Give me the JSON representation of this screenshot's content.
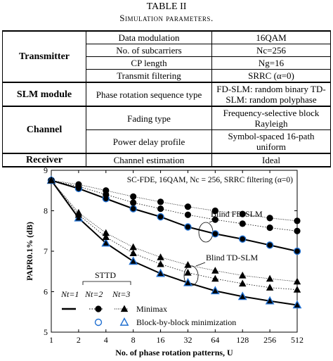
{
  "table": {
    "caption_number": "TABLE II",
    "caption_title": "Simulation parameters.",
    "groups": [
      {
        "name": "Transmitter",
        "rows": [
          {
            "param": "Data modulation",
            "value": "16QAM"
          },
          {
            "param": "No. of subcarriers",
            "value": "Nc=256"
          },
          {
            "param": "CP length",
            "value": "Ng=16"
          },
          {
            "param": "Transmit filtering",
            "value": "SRRC (α=0)"
          }
        ]
      },
      {
        "name": "SLM module",
        "rows": [
          {
            "param": "Phase rotation sequence type",
            "value": "FD-SLM: random binary TD-SLM: random polyphase"
          }
        ]
      },
      {
        "name": "Channel",
        "rows": [
          {
            "param": "Fading type",
            "value": "Frequency-selective block Rayleigh"
          },
          {
            "param": "Power delay profile",
            "value": "Symbol-spaced 16-path uniform"
          }
        ]
      },
      {
        "name": "Receiver",
        "rows": [
          {
            "param": "Channel estimation",
            "value": "Ideal"
          }
        ]
      }
    ]
  },
  "chart_data": {
    "type": "line",
    "title": "SC-FDE, 16QAM, Nc = 256, SRRC filtering (α=0)",
    "xlabel": "No. of phase rotation patterns, U",
    "ylabel": "PAPR0.1% (dB)",
    "x_scale": "log2",
    "x_ticks": [
      "1",
      "2",
      "4",
      "8",
      "16",
      "32",
      "64",
      "128",
      "256",
      "512"
    ],
    "y_ticks": [
      "5",
      "6",
      "7",
      "8",
      "9"
    ],
    "ylim": [
      5,
      9
    ],
    "x": [
      1,
      2,
      4,
      8,
      16,
      32,
      64,
      128,
      256,
      512
    ],
    "annotations": [
      "Blind FD-SLM",
      "Blind TD-SLM",
      "STTD",
      "Nt=1",
      "Nt=2",
      "Nt=3"
    ],
    "legend": [
      "Minimax",
      "Block-by-block minimization"
    ],
    "series": [
      {
        "group": "FD",
        "nt": 1,
        "minimax": [
          8.75,
          8.55,
          8.3,
          8.05,
          7.85,
          7.6,
          7.43,
          7.3,
          7.15,
          7.0
        ],
        "block": [
          8.75,
          8.55,
          8.3,
          8.05,
          7.85,
          7.6,
          7.43,
          7.3,
          7.15,
          7.0
        ]
      },
      {
        "group": "FD",
        "nt": 2,
        "minimax": [
          8.75,
          8.6,
          8.4,
          8.2,
          8.05,
          7.9,
          7.78,
          7.68,
          7.58,
          7.5
        ]
      },
      {
        "group": "FD",
        "nt": 3,
        "minimax": [
          8.75,
          8.65,
          8.5,
          8.35,
          8.22,
          8.1,
          8.0,
          7.92,
          7.82,
          7.75
        ]
      },
      {
        "group": "TD",
        "nt": 1,
        "minimax": [
          8.75,
          7.82,
          7.2,
          6.75,
          6.45,
          6.22,
          6.02,
          5.88,
          5.77,
          5.67
        ],
        "block": [
          8.75,
          7.82,
          7.2,
          6.75,
          6.45,
          6.22,
          6.02,
          5.88,
          5.77,
          5.67
        ]
      },
      {
        "group": "TD",
        "nt": 2,
        "minimax": [
          8.75,
          7.9,
          7.35,
          6.95,
          6.68,
          6.47,
          6.32,
          6.2,
          6.1,
          6.05
        ]
      },
      {
        "group": "TD",
        "nt": 3,
        "minimax": [
          8.75,
          7.95,
          7.45,
          7.1,
          6.85,
          6.66,
          6.52,
          6.4,
          6.32,
          6.25
        ]
      }
    ]
  }
}
